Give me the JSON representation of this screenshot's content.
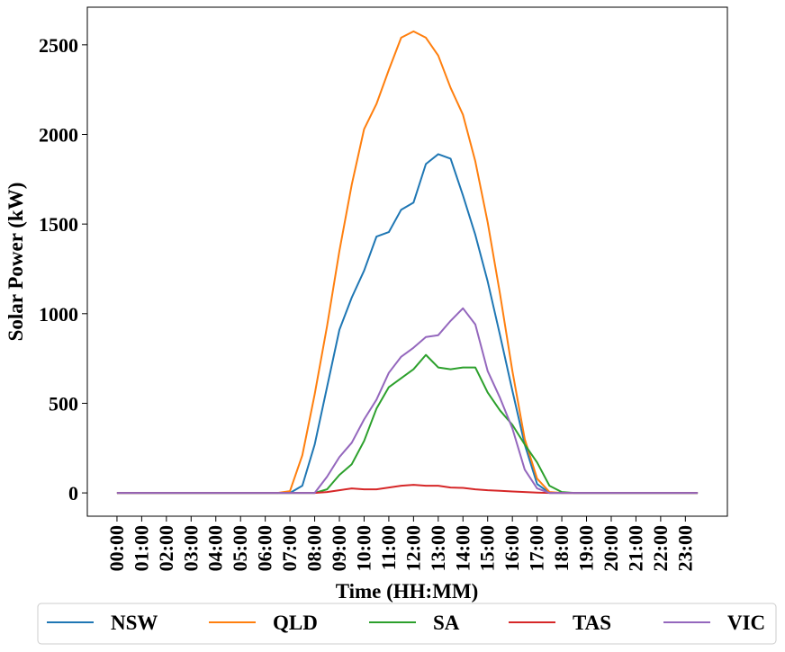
{
  "chart_data": {
    "type": "line",
    "title": "",
    "xlabel": "Time (HH:MM)",
    "ylabel": "Solar Power (kW)",
    "ylim": [
      -130,
      2710
    ],
    "yticks": [
      0,
      500,
      1000,
      1500,
      2000,
      2500
    ],
    "xtick_labels": [
      "00:00",
      "01:00",
      "02:00",
      "03:00",
      "04:00",
      "05:00",
      "06:00",
      "07:00",
      "08:00",
      "09:00",
      "10:00",
      "11:00",
      "12:00",
      "13:00",
      "14:00",
      "15:00",
      "16:00",
      "17:00",
      "18:00",
      "19:00",
      "20:00",
      "21:00",
      "22:00",
      "23:00"
    ],
    "x": [
      0,
      0.5,
      1,
      1.5,
      2,
      2.5,
      3,
      3.5,
      4,
      4.5,
      5,
      5.5,
      6,
      6.5,
      7,
      7.5,
      8,
      8.5,
      9,
      9.5,
      10,
      10.5,
      11,
      11.5,
      12,
      12.5,
      13,
      13.5,
      14,
      14.5,
      15,
      15.5,
      16,
      16.5,
      17,
      17.5,
      18,
      18.5,
      19,
      19.5,
      20,
      20.5,
      21,
      21.5,
      22,
      22.5,
      23,
      23.5
    ],
    "legend_position": "bottom-outside",
    "grid": false,
    "series": [
      {
        "name": "NSW",
        "color": "#1f77b4",
        "values": [
          0,
          0,
          0,
          0,
          0,
          0,
          0,
          0,
          0,
          0,
          0,
          0,
          0,
          0,
          0,
          40,
          270,
          590,
          910,
          1090,
          1240,
          1430,
          1455,
          1580,
          1620,
          1835,
          1890,
          1865,
          1660,
          1440,
          1180,
          880,
          570,
          270,
          50,
          0,
          0,
          0,
          0,
          0,
          0,
          0,
          0,
          0,
          0,
          0,
          0,
          0
        ]
      },
      {
        "name": "QLD",
        "color": "#ff7f0e",
        "values": [
          0,
          0,
          0,
          0,
          0,
          0,
          0,
          0,
          0,
          0,
          0,
          0,
          0,
          0,
          10,
          210,
          550,
          930,
          1350,
          1720,
          2030,
          2170,
          2360,
          2540,
          2575,
          2540,
          2440,
          2260,
          2110,
          1850,
          1510,
          1110,
          680,
          300,
          80,
          5,
          0,
          0,
          0,
          0,
          0,
          0,
          0,
          0,
          0,
          0,
          0,
          0
        ]
      },
      {
        "name": "SA",
        "color": "#2ca02c",
        "values": [
          0,
          0,
          0,
          0,
          0,
          0,
          0,
          0,
          0,
          0,
          0,
          0,
          0,
          0,
          0,
          0,
          0,
          20,
          100,
          160,
          290,
          470,
          590,
          640,
          690,
          770,
          700,
          690,
          700,
          700,
          560,
          460,
          380,
          270,
          170,
          40,
          5,
          0,
          0,
          0,
          0,
          0,
          0,
          0,
          0,
          0,
          0,
          0
        ]
      },
      {
        "name": "TAS",
        "color": "#d62728",
        "values": [
          0,
          0,
          0,
          0,
          0,
          0,
          0,
          0,
          0,
          0,
          0,
          0,
          0,
          0,
          0,
          0,
          0,
          5,
          15,
          25,
          20,
          20,
          30,
          40,
          45,
          40,
          40,
          30,
          28,
          20,
          15,
          12,
          8,
          5,
          2,
          0,
          0,
          0,
          0,
          0,
          0,
          0,
          0,
          0,
          0,
          0,
          0,
          0
        ]
      },
      {
        "name": "VIC",
        "color": "#9467bd",
        "values": [
          0,
          0,
          0,
          0,
          0,
          0,
          0,
          0,
          0,
          0,
          0,
          0,
          0,
          0,
          0,
          0,
          0,
          90,
          200,
          280,
          410,
          520,
          670,
          760,
          810,
          870,
          880,
          960,
          1030,
          940,
          680,
          530,
          360,
          130,
          25,
          0,
          0,
          0,
          0,
          0,
          0,
          0,
          0,
          0,
          0,
          0,
          0,
          0
        ]
      }
    ]
  }
}
